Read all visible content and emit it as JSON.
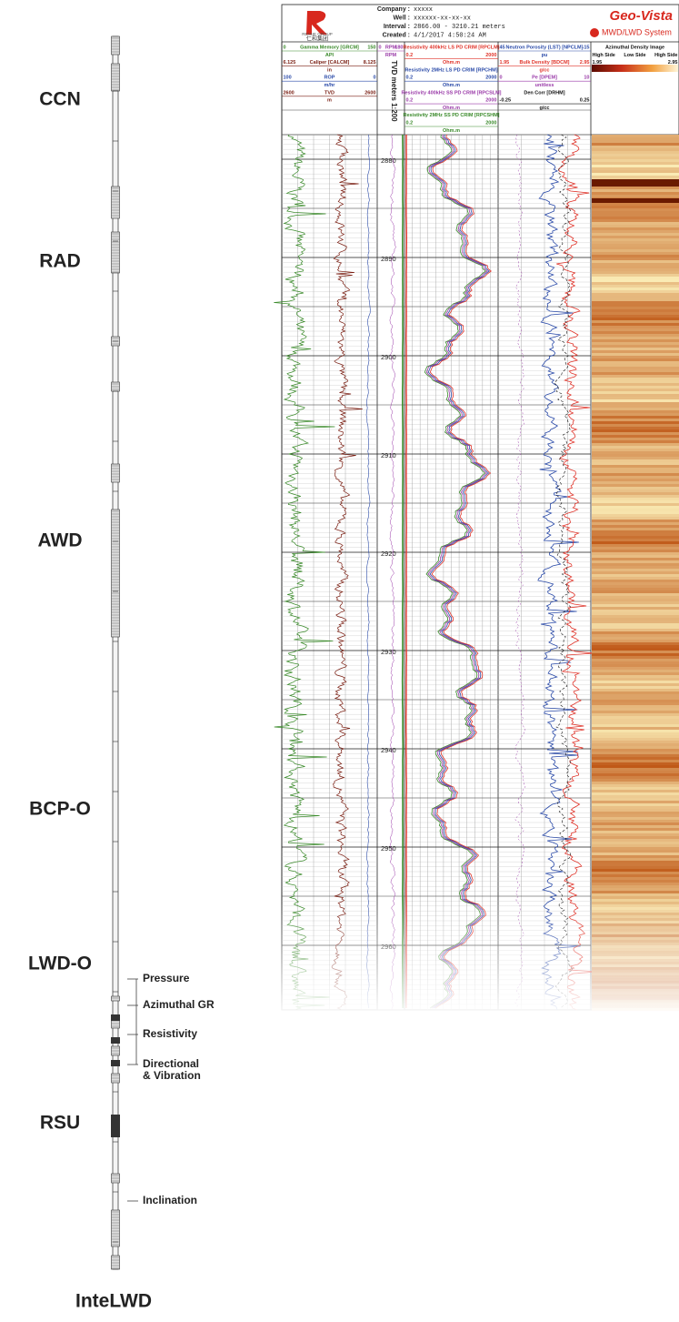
{
  "tool_string": {
    "name": "InteLWD",
    "sections": [
      "CCN",
      "RAD",
      "AWD",
      "BCP-O",
      "LWD-O",
      "RSU"
    ],
    "sensors": [
      [
        "Pressure"
      ],
      [
        "Azimuthal GR"
      ],
      [
        "Resistivity"
      ],
      [
        "Directional",
        "& Vibration"
      ],
      [
        "Inclination"
      ]
    ]
  },
  "log_header": {
    "logo_en": "RENHE GROUP",
    "logo_cn": "仁和集团",
    "fields": [
      {
        "label": "Company :",
        "value": "xxxxx"
      },
      {
        "label": "Well :",
        "value": "xxxxxx-xx-xx-xx"
      },
      {
        "label": "Interval :",
        "value": "2866.00 - 3210.21 meters"
      },
      {
        "label": "Created :",
        "value": "4/1/2017 4:50:24 AM"
      }
    ],
    "brand": "Geo-Vista",
    "system": "MWD/LWD System"
  },
  "tracks": [
    {
      "rows": [
        {
          "left": "0",
          "center": "Gamma Memory [GRCM]",
          "right": "150",
          "color": "#3a8a2a"
        },
        {
          "center": "API",
          "color": "#3a8a2a"
        },
        {
          "left": "6.125",
          "center": "Caliper [CALCM]",
          "right": "8.125",
          "color": "#7a1e12"
        },
        {
          "center": "in",
          "color": "#7a1e12"
        },
        {
          "left": "100",
          "center": "ROP",
          "right": "0",
          "color": "#2a4aa8"
        },
        {
          "center": "m/hr",
          "color": "#2a4aa8"
        },
        {
          "left": "2600",
          "center": "TVD",
          "right": "2600",
          "color": "#7a1e12"
        },
        {
          "center": "m",
          "color": "#7a1e12"
        }
      ]
    },
    {
      "rows": [
        {
          "left": "0",
          "center": "RPM",
          "right": "180",
          "color": "#9a3aa8"
        },
        {
          "center": "RPM",
          "color": "#9a3aa8"
        }
      ],
      "vertical_label": "TVD meters 1:200"
    },
    {
      "rows": [
        {
          "center": "Resistivity 400kHz LS PD CRIM [RPCLM]",
          "color": "#e0342a"
        },
        {
          "left": "0.2",
          "right": "2000",
          "color": "#e0342a"
        },
        {
          "center": "Ohm.m",
          "color": "#e0342a"
        },
        {
          "center": "Resistivity 2MHz LS PD CRIM [RPCHM]",
          "color": "#2a4aa8"
        },
        {
          "left": "0.2",
          "right": "2000",
          "color": "#2a4aa8"
        },
        {
          "center": "Ohm.m",
          "color": "#2a4aa8"
        },
        {
          "center": "Resistivity 400kHz SS PD CRIM [RPCSLM]",
          "color": "#9a3aa8"
        },
        {
          "left": "0.2",
          "right": "2000",
          "color": "#9a3aa8"
        },
        {
          "center": "Ohm.m",
          "color": "#9a3aa8"
        },
        {
          "center": "Resistivity 2MHz SS PD CRIM [RPCSHM]",
          "color": "#3a8a2a"
        },
        {
          "left": "0.2",
          "right": "2000",
          "color": "#3a8a2a"
        },
        {
          "center": "Ohm.m",
          "color": "#3a8a2a"
        }
      ]
    },
    {
      "rows": [
        {
          "left": "45",
          "center": "Neutron Porosity (LST) [NPCLM]",
          "right": "-15",
          "color": "#2a4aa8"
        },
        {
          "center": "pu",
          "color": "#2a4aa8"
        },
        {
          "left": "1.95",
          "center": "Bulk Density [BDCM]",
          "right": "2.95",
          "color": "#e0342a"
        },
        {
          "center": "g/cc",
          "color": "#e0342a"
        },
        {
          "left": "0",
          "center": "Pe [DPEM]",
          "right": "10",
          "color": "#9a3aa8"
        },
        {
          "center": "unitless",
          "color": "#9a3aa8"
        },
        {
          "center": "Den Corr [DRHM]",
          "color": "#111111"
        },
        {
          "left": "-0.25",
          "right": "0.25",
          "color": "#111111"
        },
        {
          "center": "g/cc",
          "color": "#111111"
        }
      ]
    },
    {
      "rows": [
        {
          "center": "Azimuthal Density Image",
          "color": "#111111"
        },
        {
          "left": "High Side",
          "center": "Low Side",
          "right": "High Side",
          "color": "#111111"
        },
        {
          "left": "1.95",
          "right": "2.95",
          "color": "#111111"
        }
      ]
    }
  ],
  "depth_labels": [
    2880,
    2890,
    2900,
    2910,
    2920,
    2930,
    2940,
    2950,
    2960
  ]
}
